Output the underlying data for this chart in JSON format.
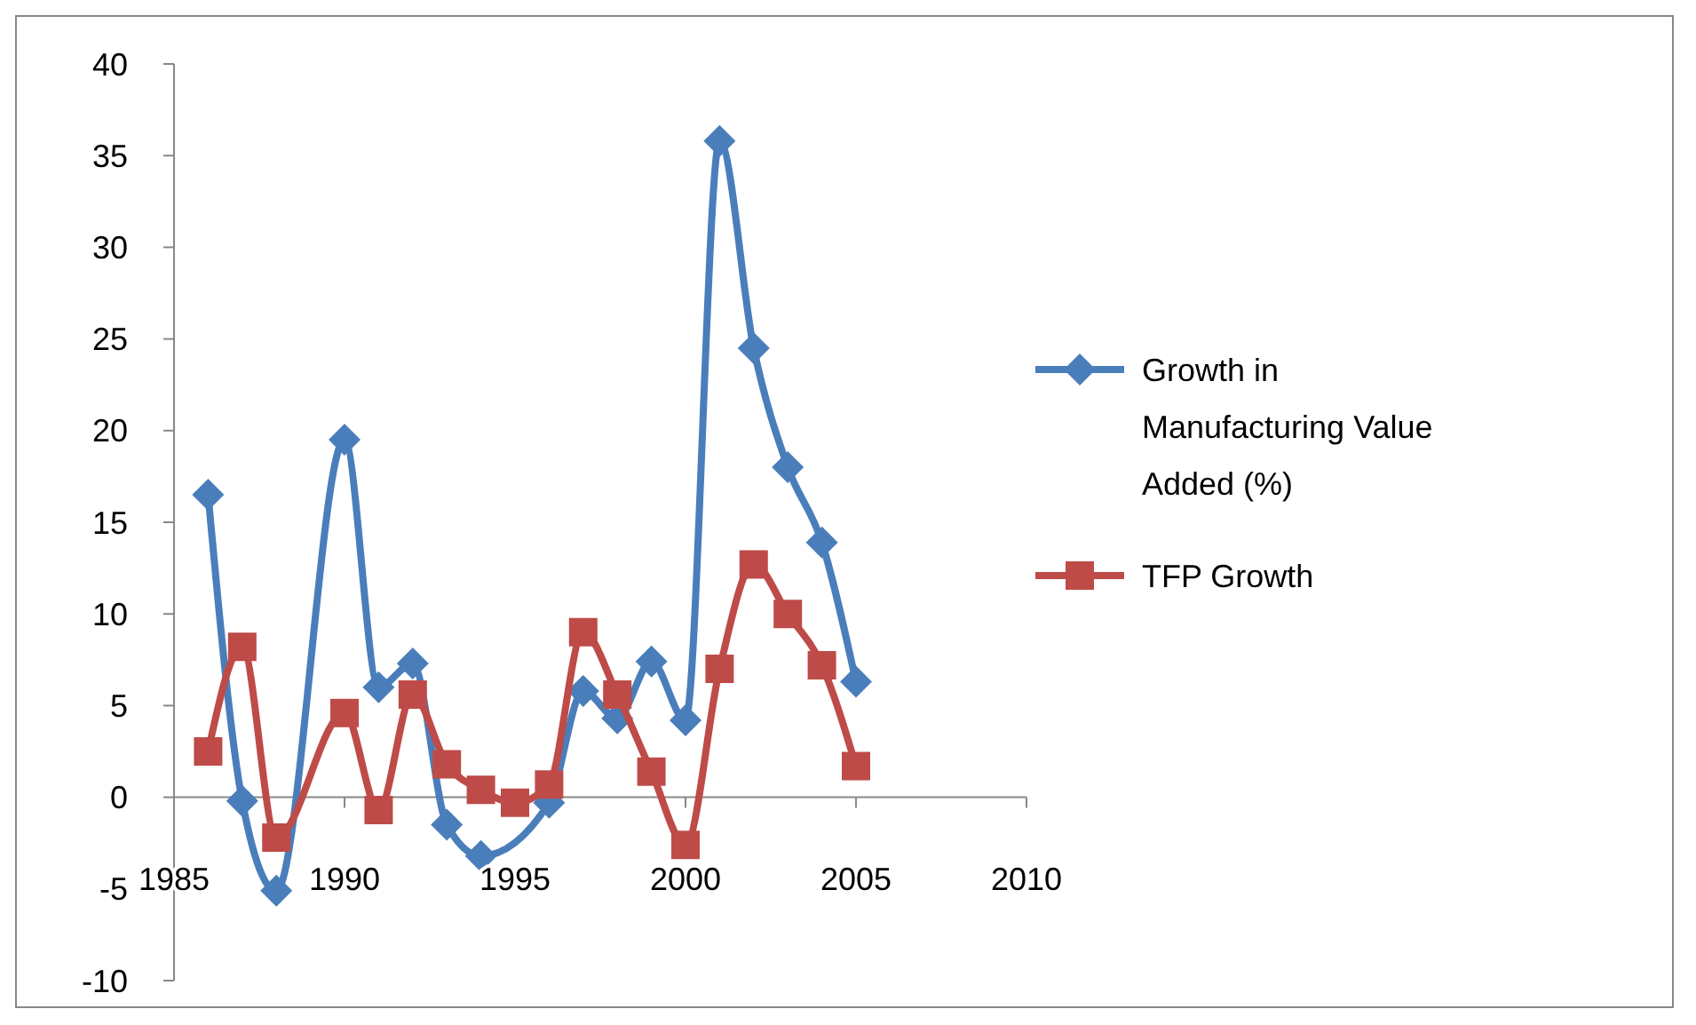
{
  "chart_data": {
    "type": "line",
    "xlim": [
      1985,
      2010
    ],
    "xticks": [
      1985,
      1990,
      1995,
      2000,
      2005,
      2010
    ],
    "ylim": [
      -10,
      40
    ],
    "yticks": [
      -10,
      -5,
      0,
      5,
      10,
      15,
      20,
      25,
      30,
      35,
      40
    ],
    "grid": false,
    "legend": "right",
    "series": [
      {
        "name": "Growth in Manufacturing Value Added (%)",
        "color": "#4a7ebb",
        "marker": "diamond",
        "x": [
          1986,
          1987,
          1988,
          1990,
          1991,
          1992,
          1993,
          1994,
          1996,
          1997,
          1998,
          1999,
          2000,
          2001,
          2002,
          2003,
          2004,
          2005
        ],
        "values": [
          16.5,
          -0.2,
          -5.1,
          19.5,
          6,
          7.3,
          -1.5,
          -3.2,
          -0.3,
          5.8,
          4.3,
          7.4,
          4.2,
          35.8,
          24.5,
          18,
          13.9,
          6.3
        ]
      },
      {
        "name": "TFP Growth",
        "color": "#be4b48",
        "marker": "square",
        "x": [
          1986,
          1987,
          1988,
          1990,
          1991,
          1992,
          1993,
          1994,
          1995,
          1996,
          1997,
          1998,
          1999,
          2000,
          2001,
          2002,
          2003,
          2004,
          2005
        ],
        "values": [
          2.5,
          8.2,
          -2.2,
          4.6,
          -0.7,
          5.6,
          1.8,
          0.4,
          -0.3,
          0.7,
          9,
          5.6,
          1.4,
          -2.6,
          7,
          12.7,
          10,
          7.2,
          1.7
        ]
      }
    ]
  }
}
